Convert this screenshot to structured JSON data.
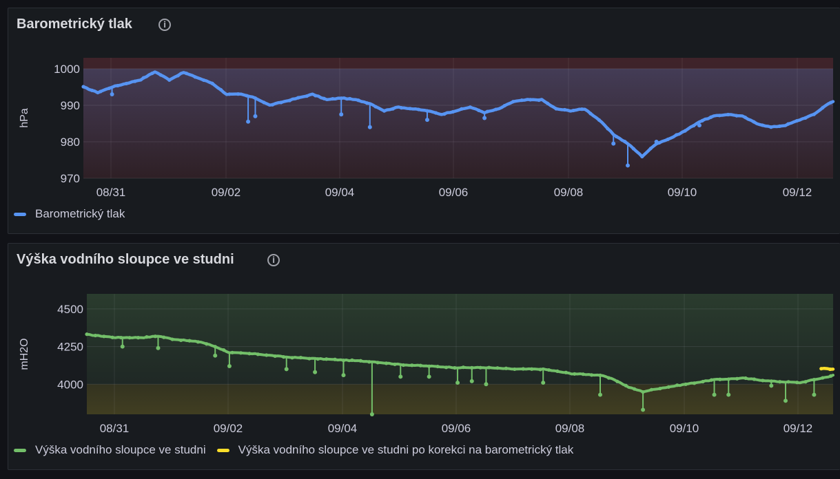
{
  "colors": {
    "background": "#111217",
    "panel": "#181b1f",
    "pressure": "#5794f2",
    "water": "#73bf69",
    "corrected": "#fade2a",
    "text": "#ccccdc"
  },
  "panel1": {
    "title": "Barometrický tlak",
    "info_icon": "info-circle-icon"
  },
  "panel2": {
    "title": "Výška vodního sloupce ve studni",
    "info_icon": "info-circle-icon"
  },
  "chart_data": [
    {
      "type": "line",
      "ylabel": "hPa",
      "xlabel": "",
      "ylim": [
        970,
        1003
      ],
      "xlim": [
        "2024-08-30T12:00",
        "2024-09-12T14:00"
      ],
      "x_ticks": [
        "08/31",
        "09/02",
        "09/04",
        "09/06",
        "09/08",
        "09/10",
        "09/12"
      ],
      "y_ticks": [
        970,
        980,
        990,
        1000
      ],
      "grid": true,
      "legend_position": "bottom-left",
      "thresholds": "red background band",
      "series": [
        {
          "name": "Barometrický tlak",
          "color": "#5794f2",
          "points": [
            [
              "2024-08-30T12:00",
              995
            ],
            [
              "2024-08-30T18:00",
              993.5
            ],
            [
              "2024-08-31T00:00",
              995
            ],
            [
              "2024-08-31T06:00",
              996
            ],
            [
              "2024-08-31T12:00",
              997
            ],
            [
              "2024-08-31T18:00",
              999.2
            ],
            [
              "2024-09-01T00:00",
              997
            ],
            [
              "2024-09-01T06:00",
              999
            ],
            [
              "2024-09-01T12:00",
              997.5
            ],
            [
              "2024-09-01T18:00",
              996
            ],
            [
              "2024-09-02T00:00",
              993
            ],
            [
              "2024-09-02T06:00",
              993
            ],
            [
              "2024-09-02T12:00",
              992
            ],
            [
              "2024-09-02T18:00",
              990
            ],
            [
              "2024-09-03T00:00",
              991
            ],
            [
              "2024-09-03T06:00",
              992
            ],
            [
              "2024-09-03T12:00",
              993
            ],
            [
              "2024-09-03T18:00",
              991.5
            ],
            [
              "2024-09-04T00:00",
              992
            ],
            [
              "2024-09-04T06:00",
              991.5
            ],
            [
              "2024-09-04T12:00",
              990.5
            ],
            [
              "2024-09-04T18:00",
              988.5
            ],
            [
              "2024-09-05T00:00",
              989.5
            ],
            [
              "2024-09-05T06:00",
              989
            ],
            [
              "2024-09-05T12:00",
              988.5
            ],
            [
              "2024-09-05T18:00",
              987.5
            ],
            [
              "2024-09-06T00:00",
              988.5
            ],
            [
              "2024-09-06T06:00",
              989.5
            ],
            [
              "2024-09-06T12:00",
              988
            ],
            [
              "2024-09-06T18:00",
              989
            ],
            [
              "2024-09-07T00:00",
              991
            ],
            [
              "2024-09-07T06:00",
              991.5
            ],
            [
              "2024-09-07T12:00",
              991.5
            ],
            [
              "2024-09-07T18:00",
              989
            ],
            [
              "2024-09-08T00:00",
              988.5
            ],
            [
              "2024-09-08T06:00",
              989
            ],
            [
              "2024-09-08T12:00",
              986
            ],
            [
              "2024-09-08T18:00",
              982
            ],
            [
              "2024-09-09T00:00",
              979.5
            ],
            [
              "2024-09-09T06:00",
              976
            ],
            [
              "2024-09-09T12:00",
              979.5
            ],
            [
              "2024-09-09T18:00",
              981
            ],
            [
              "2024-09-10T00:00",
              983
            ],
            [
              "2024-09-10T06:00",
              985.5
            ],
            [
              "2024-09-10T12:00",
              987
            ],
            [
              "2024-09-10T18:00",
              987.5
            ],
            [
              "2024-09-11T00:00",
              987
            ],
            [
              "2024-09-11T06:00",
              985
            ],
            [
              "2024-09-11T12:00",
              984
            ],
            [
              "2024-09-11T18:00",
              984.5
            ],
            [
              "2024-09-12T00:00",
              986
            ],
            [
              "2024-09-12T06:00",
              987.5
            ],
            [
              "2024-09-12T12:00",
              990.5
            ],
            [
              "2024-09-12T14:00",
              991
            ]
          ],
          "dips": [
            [
              "2024-08-31T00:00",
              993
            ],
            [
              "2024-09-02T09:00",
              985.5
            ],
            [
              "2024-09-02T12:00",
              987
            ],
            [
              "2024-09-04T00:00",
              987.5
            ],
            [
              "2024-09-04T12:00",
              984
            ],
            [
              "2024-09-05T12:00",
              986
            ],
            [
              "2024-09-06T12:00",
              986.5
            ],
            [
              "2024-09-08T18:00",
              979.5
            ],
            [
              "2024-09-09T00:00",
              973.5
            ],
            [
              "2024-09-09T12:00",
              980
            ],
            [
              "2024-09-10T06:00",
              984.5
            ]
          ]
        }
      ]
    },
    {
      "type": "line",
      "ylabel": "mH2O",
      "xlabel": "",
      "ylim": [
        3800,
        4600
      ],
      "xlim": [
        "2024-08-30T12:00",
        "2024-09-12T14:00"
      ],
      "x_ticks": [
        "08/31",
        "09/02",
        "09/04",
        "09/06",
        "09/08",
        "09/10",
        "09/12"
      ],
      "y_ticks": [
        4000,
        4250,
        4500
      ],
      "grid": true,
      "legend_position": "bottom-left",
      "thresholds": "green background above 4000, yellow below 4000",
      "series": [
        {
          "name": "Výška vodního sloupce ve studni",
          "color": "#73bf69",
          "points": [
            [
              "2024-08-30T12:00",
              4330
            ],
            [
              "2024-08-31T00:00",
              4310
            ],
            [
              "2024-08-31T12:00",
              4310
            ],
            [
              "2024-08-31T18:00",
              4320
            ],
            [
              "2024-09-01T00:00",
              4300
            ],
            [
              "2024-09-01T12:00",
              4280
            ],
            [
              "2024-09-01T18:00",
              4250
            ],
            [
              "2024-09-02T00:00",
              4210
            ],
            [
              "2024-09-02T12:00",
              4200
            ],
            [
              "2024-09-03T00:00",
              4180
            ],
            [
              "2024-09-03T12:00",
              4170
            ],
            [
              "2024-09-04T00:00",
              4160
            ],
            [
              "2024-09-04T12:00",
              4150
            ],
            [
              "2024-09-05T00:00",
              4130
            ],
            [
              "2024-09-05T12:00",
              4120
            ],
            [
              "2024-09-06T00:00",
              4110
            ],
            [
              "2024-09-06T12:00",
              4110
            ],
            [
              "2024-09-07T00:00",
              4100
            ],
            [
              "2024-09-07T12:00",
              4100
            ],
            [
              "2024-09-08T00:00",
              4070
            ],
            [
              "2024-09-08T12:00",
              4060
            ],
            [
              "2024-09-08T18:00",
              4030
            ],
            [
              "2024-09-09T00:00",
              3980
            ],
            [
              "2024-09-09T06:00",
              3950
            ],
            [
              "2024-09-09T12:00",
              3970
            ],
            [
              "2024-09-10T00:00",
              4000
            ],
            [
              "2024-09-10T12:00",
              4030
            ],
            [
              "2024-09-11T00:00",
              4040
            ],
            [
              "2024-09-11T12:00",
              4020
            ],
            [
              "2024-09-12T00:00",
              4010
            ],
            [
              "2024-09-12T12:00",
              4050
            ],
            [
              "2024-09-12T14:00",
              4060
            ]
          ],
          "dips": [
            [
              "2024-08-31T03:00",
              4250
            ],
            [
              "2024-08-31T18:00",
              4240
            ],
            [
              "2024-09-01T18:00",
              4190
            ],
            [
              "2024-09-02T00:00",
              4120
            ],
            [
              "2024-09-03T00:00",
              4100
            ],
            [
              "2024-09-03T12:00",
              4080
            ],
            [
              "2024-09-04T00:00",
              4060
            ],
            [
              "2024-09-04T12:00",
              3800
            ],
            [
              "2024-09-05T00:00",
              4050
            ],
            [
              "2024-09-05T12:00",
              4050
            ],
            [
              "2024-09-06T00:00",
              4010
            ],
            [
              "2024-09-06T06:00",
              4020
            ],
            [
              "2024-09-06T12:00",
              4000
            ],
            [
              "2024-09-07T12:00",
              4010
            ],
            [
              "2024-09-08T12:00",
              3930
            ],
            [
              "2024-09-09T06:00",
              3830
            ],
            [
              "2024-09-10T12:00",
              3930
            ],
            [
              "2024-09-10T18:00",
              3930
            ],
            [
              "2024-09-11T12:00",
              3990
            ],
            [
              "2024-09-11T18:00",
              3890
            ],
            [
              "2024-09-12T06:00",
              3930
            ]
          ]
        },
        {
          "name": "Výška vodního sloupce ve studni po korekci na barometrický tlak",
          "color": "#fade2a",
          "points": [
            [
              "2024-09-12T09:00",
              4105
            ],
            [
              "2024-09-12T14:00",
              4100
            ]
          ]
        }
      ]
    }
  ]
}
